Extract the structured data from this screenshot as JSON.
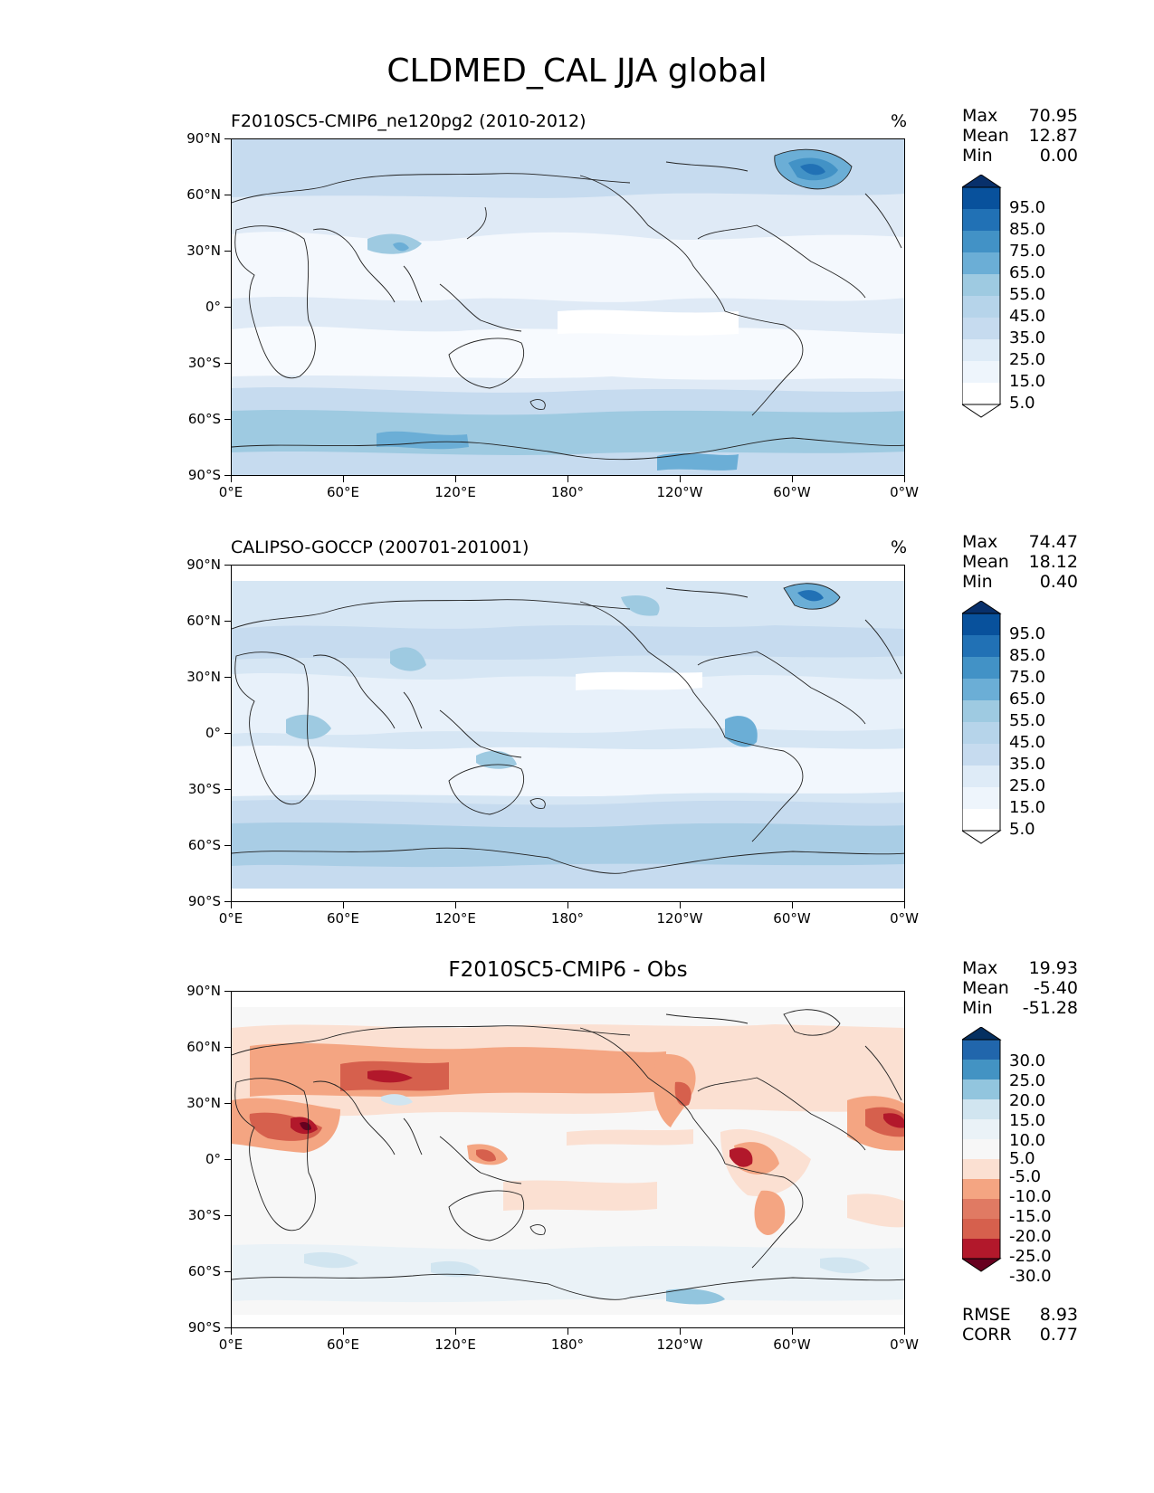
{
  "title": "CLDMED_CAL JJA global",
  "x_ticks": [
    "0°E",
    "60°E",
    "120°E",
    "180°",
    "120°W",
    "60°W",
    "0°W"
  ],
  "y_ticks": [
    "90°N",
    "60°N",
    "30°N",
    "0°",
    "30°S",
    "60°S",
    "90°S"
  ],
  "panels": [
    {
      "title": "F2010SC5-CMIP6_ne120pg2 (2010-2012)",
      "units": "%",
      "stats": {
        "max_label": "Max",
        "max": "70.95",
        "mean_label": "Mean",
        "mean": "12.87",
        "min_label": "Min",
        "min": "0.00"
      },
      "colorbar": {
        "labels": [
          "95.0",
          "85.0",
          "75.0",
          "65.0",
          "55.0",
          "45.0",
          "35.0",
          "25.0",
          "15.0",
          "5.0"
        ],
        "colors": [
          "#08306b",
          "#08519c",
          "#2171b5",
          "#4292c6",
          "#6baed6",
          "#9ecae1",
          "#b6d4ea",
          "#c6dbef",
          "#deebf7",
          "#eef5fc",
          "#ffffff"
        ]
      }
    },
    {
      "title": "CALIPSO-GOCCP (200701-201001)",
      "units": "%",
      "stats": {
        "max_label": "Max",
        "max": "74.47",
        "mean_label": "Mean",
        "mean": "18.12",
        "min_label": "Min",
        "min": "0.40"
      },
      "colorbar": {
        "labels": [
          "95.0",
          "85.0",
          "75.0",
          "65.0",
          "55.0",
          "45.0",
          "35.0",
          "25.0",
          "15.0",
          "5.0"
        ],
        "colors": [
          "#08306b",
          "#08519c",
          "#2171b5",
          "#4292c6",
          "#6baed6",
          "#9ecae1",
          "#b6d4ea",
          "#c6dbef",
          "#deebf7",
          "#eef5fc",
          "#ffffff"
        ]
      }
    },
    {
      "title": "F2010SC5-CMIP6 - Obs",
      "units": "",
      "stats": {
        "max_label": "Max",
        "max": "19.93",
        "mean_label": "Mean",
        "mean": "-5.40",
        "min_label": "Min",
        "min": "-51.28"
      },
      "colorbar": {
        "labels": [
          "30.0",
          "25.0",
          "20.0",
          "15.0",
          "10.0",
          "5.0",
          "-5.0",
          "-10.0",
          "-15.0",
          "-20.0",
          "-25.0",
          "-30.0"
        ],
        "colors": [
          "#053061",
          "#2166ac",
          "#4393c3",
          "#92c5de",
          "#d1e5f0",
          "#eaf2f7",
          "#f7f7f7",
          "#fbe0d2",
          "#f4a582",
          "#e07a63",
          "#d6604d",
          "#b2182b",
          "#67001f"
        ]
      }
    }
  ],
  "metrics": {
    "rmse_label": "RMSE",
    "rmse": "8.93",
    "corr_label": "CORR",
    "corr": "0.77"
  }
}
